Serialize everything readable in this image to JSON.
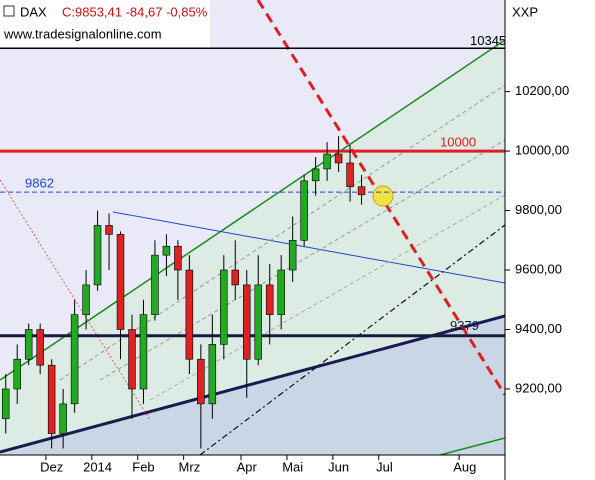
{
  "chart_data": {
    "type": "candlestick",
    "title": "DAX",
    "quote": "C:9853,41 -84,67 -0,85%",
    "source": "www.tradesignalonline.com",
    "axis_label": "XXP",
    "categories": [
      null,
      null,
      null,
      null,
      "Dez",
      null,
      null,
      null,
      "2014",
      null,
      null,
      null,
      "Feb",
      null,
      null,
      null,
      "Mrz",
      null,
      null,
      null,
      null,
      "Apr",
      null,
      null,
      null,
      "Mai",
      null,
      null,
      null,
      "Jun",
      null,
      null,
      null,
      "Jul",
      null,
      null,
      null,
      null,
      null,
      null,
      "Aug",
      null,
      null,
      null
    ],
    "series": [
      {
        "name": "open",
        "values": [
          9100,
          9200,
          9300,
          9400,
          9280,
          9050,
          9150,
          9450,
          9550,
          9750,
          9720,
          9400,
          9200,
          9450,
          9650,
          9680,
          9600,
          9300,
          9150,
          9350,
          9600,
          9550,
          9300,
          9550,
          9450,
          9600,
          9700,
          9900,
          9940,
          9990,
          9960,
          9880,
          null,
          null,
          null,
          null,
          null,
          null,
          null,
          null,
          null,
          null,
          null,
          null
        ]
      },
      {
        "name": "high",
        "values": [
          9250,
          9350,
          9420,
          9420,
          9300,
          9200,
          9500,
          9600,
          9800,
          9790,
          9730,
          9450,
          9500,
          9700,
          9720,
          9700,
          9650,
          9350,
          9450,
          9650,
          9700,
          9600,
          9650,
          9620,
          9650,
          9780,
          9920,
          9980,
          10030,
          10050,
          10020,
          9920,
          null,
          null,
          null,
          null,
          null,
          null,
          null,
          null,
          null,
          null,
          null,
          null
        ]
      },
      {
        "name": "low",
        "values": [
          9050,
          9150,
          9280,
          9250,
          9000,
          9000,
          9120,
          9400,
          9530,
          9600,
          9300,
          9100,
          9150,
          9430,
          9580,
          9500,
          9250,
          9000,
          9100,
          9300,
          9500,
          9170,
          9280,
          9350,
          9400,
          9560,
          9680,
          9850,
          9900,
          9930,
          9830,
          9820,
          null,
          null,
          null,
          null,
          null,
          null,
          null,
          null,
          null,
          null,
          null,
          null
        ]
      },
      {
        "name": "close",
        "values": [
          9200,
          9300,
          9400,
          9280,
          9050,
          9150,
          9450,
          9550,
          9750,
          9720,
          9400,
          9200,
          9450,
          9650,
          9680,
          9600,
          9300,
          9150,
          9350,
          9600,
          9550,
          9300,
          9550,
          9450,
          9600,
          9700,
          9900,
          9940,
          9990,
          9960,
          9880,
          9853,
          null,
          null,
          null,
          null,
          null,
          null,
          null,
          null,
          null,
          null,
          null,
          null
        ]
      }
    ],
    "up_color": "#22aa22",
    "down_color": "#dd2222",
    "levels": [
      {
        "value": 10345,
        "color": "#000000"
      },
      {
        "value": 10000,
        "color": "#e02020"
      },
      {
        "value": 9862,
        "color": "#2244dd"
      },
      {
        "value": 9379,
        "color": "#1a1a40"
      }
    ],
    "ylim": [
      8978,
      10508
    ],
    "yticks": [
      {
        "value": 9200,
        "label": "9200,00"
      },
      {
        "value": 9400,
        "label": "9400,00"
      },
      {
        "value": 9600,
        "label": "9600,00"
      },
      {
        "value": 9800,
        "label": "9800,00"
      },
      {
        "value": 10000,
        "label": "10000,00"
      },
      {
        "value": 10200,
        "label": "10200,00"
      }
    ]
  }
}
